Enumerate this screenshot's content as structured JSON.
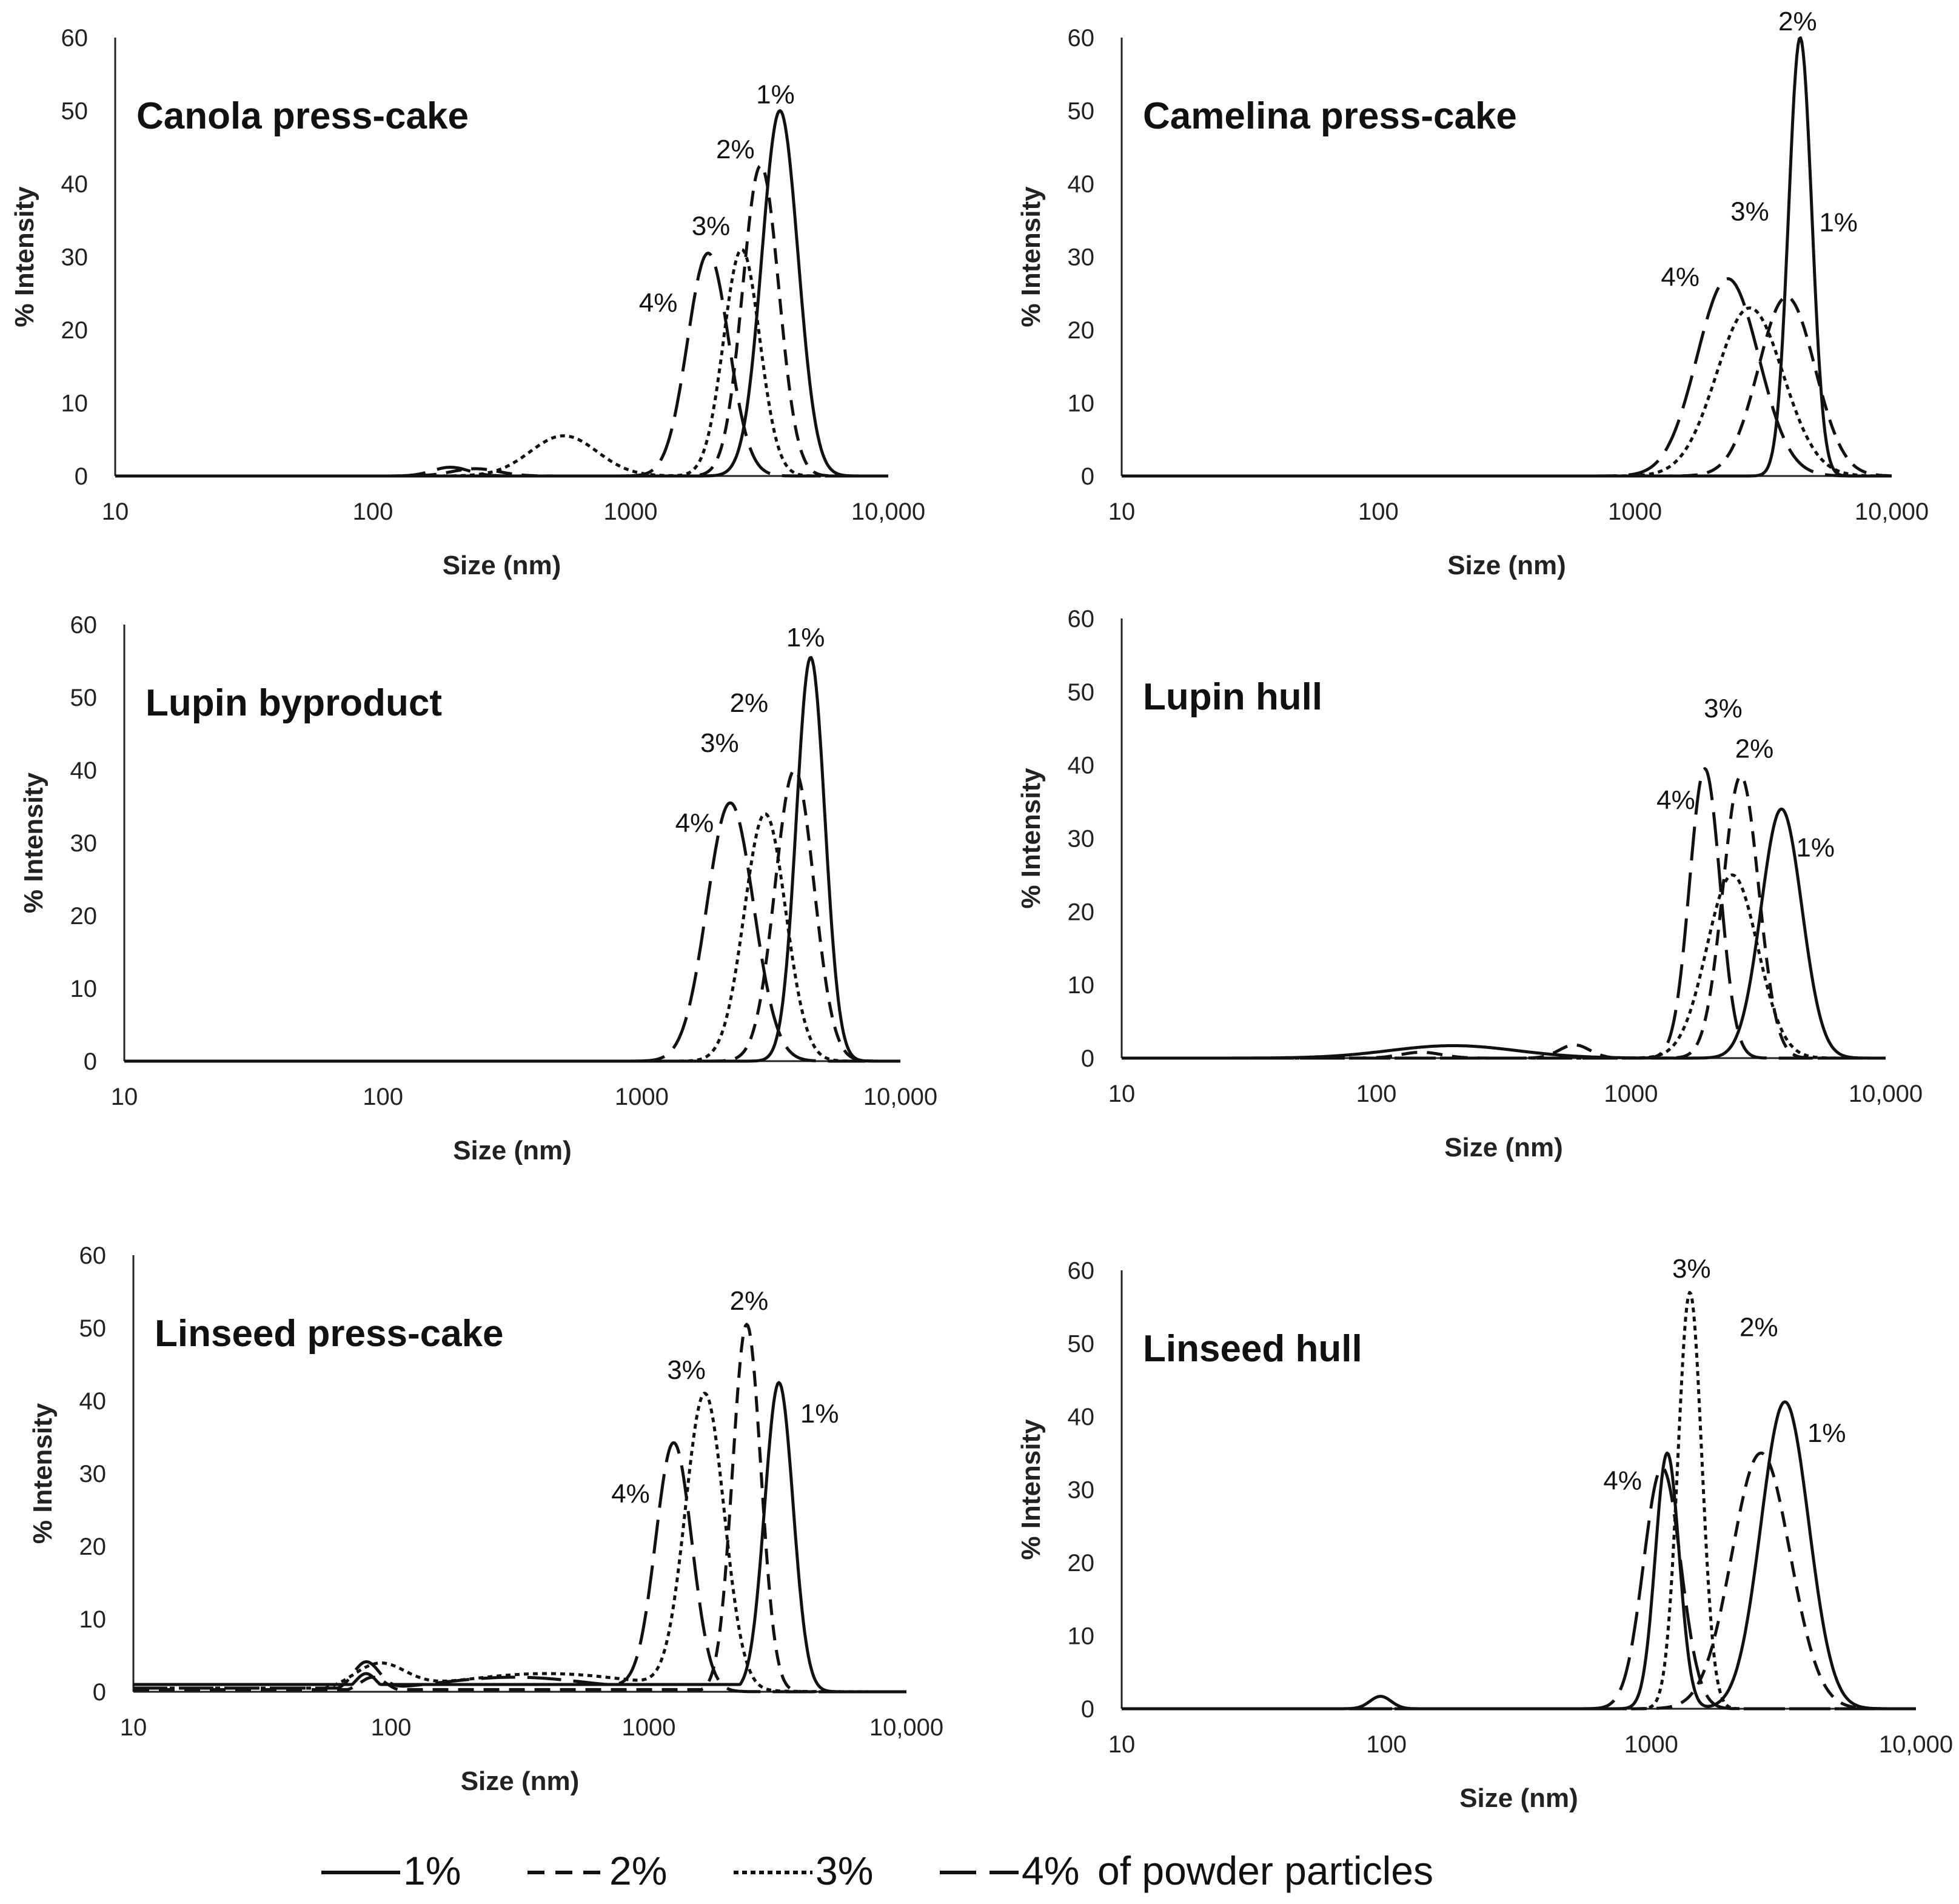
{
  "legend": {
    "items": [
      {
        "label": "1%",
        "dash": "none"
      },
      {
        "label": "2%",
        "dash": "28,18"
      },
      {
        "label": "3%",
        "dash": "8,6"
      },
      {
        "label": "4%",
        "dash": "60,22"
      }
    ],
    "suffix": "of powder particles"
  },
  "chart_data": [
    {
      "type": "line",
      "title": "Canola press-cake",
      "xlabel": "Size (nm)",
      "ylabel": "% Intensity",
      "xscale": "log",
      "xlim": [
        10,
        10000
      ],
      "ylim": [
        0,
        60
      ],
      "xticks": [
        "10",
        "100",
        "1000",
        "10,000"
      ],
      "yticks": [
        "0",
        "10",
        "20",
        "30",
        "40",
        "50",
        "60"
      ],
      "series": [
        {
          "name": "1%",
          "peaks": [
            {
              "c": 3800,
              "h": 50,
              "w": 0.07
            }
          ]
        },
        {
          "name": "2%",
          "peaks": [
            {
              "c": 3200,
              "h": 42.5,
              "w": 0.07
            },
            {
              "c": 250,
              "h": 1,
              "w": 0.09
            }
          ]
        },
        {
          "name": "3%",
          "peaks": [
            {
              "c": 2700,
              "h": 31,
              "w": 0.07
            },
            {
              "c": 550,
              "h": 5.5,
              "w": 0.13
            }
          ]
        },
        {
          "name": "4%",
          "peaks": [
            {
              "c": 2000,
              "h": 30.5,
              "w": 0.08
            },
            {
              "c": 200,
              "h": 1.2,
              "w": 0.07
            }
          ]
        }
      ],
      "annotations": [
        {
          "text": "1%",
          "x": 3650,
          "y": 51
        },
        {
          "text": "2%",
          "x": 2550,
          "y": 43.5
        },
        {
          "text": "3%",
          "x": 2050,
          "y": 33
        },
        {
          "text": "4%",
          "x": 1280,
          "y": 22.5
        }
      ]
    },
    {
      "type": "line",
      "title": "Camelina press-cake",
      "xlabel": "Size (nm)",
      "ylabel": "% Intensity",
      "xscale": "log",
      "xlim": [
        10,
        10000
      ],
      "ylim": [
        0,
        60
      ],
      "xticks": [
        "10",
        "100",
        "1000",
        "10,000"
      ],
      "yticks": [
        "0",
        "10",
        "20",
        "30",
        "40",
        "50",
        "60"
      ],
      "series": [
        {
          "name": "1%",
          "peaks": [
            {
              "c": 4400,
              "h": 60,
              "w": 0.045
            }
          ]
        },
        {
          "name": "2%",
          "peaks": [
            {
              "c": 3900,
              "h": 24.5,
              "w": 0.11
            }
          ]
        },
        {
          "name": "3%",
          "peaks": [
            {
              "c": 2800,
              "h": 23,
              "w": 0.13
            }
          ]
        },
        {
          "name": "4%",
          "peaks": [
            {
              "c": 2300,
              "h": 27,
              "w": 0.12
            }
          ]
        }
      ],
      "annotations": [
        {
          "text": "2%",
          "x": 4300,
          "y": 61
        },
        {
          "text": "3%",
          "x": 2800,
          "y": 35
        },
        {
          "text": "1%",
          "x": 6200,
          "y": 33.5
        },
        {
          "text": "4%",
          "x": 1500,
          "y": 26
        }
      ]
    },
    {
      "type": "line",
      "title": "Lupin byproduct",
      "xlabel": "Size (nm)",
      "ylabel": "% Intensity",
      "xscale": "log",
      "xlim": [
        10,
        10000
      ],
      "ylim": [
        0,
        60
      ],
      "xticks": [
        "10",
        "100",
        "1000",
        "10,000"
      ],
      "yticks": [
        "0",
        "10",
        "20",
        "30",
        "40",
        "50",
        "60"
      ],
      "series": [
        {
          "name": "1%",
          "peaks": [
            {
              "c": 4500,
              "h": 55.5,
              "w": 0.055
            }
          ]
        },
        {
          "name": "2%",
          "peaks": [
            {
              "c": 3900,
              "h": 40,
              "w": 0.075
            }
          ]
        },
        {
          "name": "3%",
          "peaks": [
            {
              "c": 3000,
              "h": 34,
              "w": 0.08
            }
          ]
        },
        {
          "name": "4%",
          "peaks": [
            {
              "c": 2200,
              "h": 35.5,
              "w": 0.09
            }
          ]
        }
      ],
      "annotations": [
        {
          "text": "1%",
          "x": 4300,
          "y": 57
        },
        {
          "text": "2%",
          "x": 2600,
          "y": 48
        },
        {
          "text": "3%",
          "x": 2000,
          "y": 42.5
        },
        {
          "text": "4%",
          "x": 1600,
          "y": 31.5
        }
      ]
    },
    {
      "type": "line",
      "title": "Lupin hull",
      "xlabel": "Size (nm)",
      "ylabel": "% Intensity",
      "xscale": "log",
      "xlim": [
        10,
        10000
      ],
      "ylim": [
        0,
        60
      ],
      "xticks": [
        "10",
        "100",
        "1000",
        "10,000"
      ],
      "yticks": [
        "0",
        "10",
        "20",
        "30",
        "40",
        "50",
        "60"
      ],
      "series": [
        {
          "name": "1%",
          "peaks": [
            {
              "c": 3900,
              "h": 34,
              "w": 0.08
            },
            {
              "c": 200,
              "h": 1.7,
              "w": 0.25
            }
          ]
        },
        {
          "name": "2%",
          "peaks": [
            {
              "c": 2700,
              "h": 38.5,
              "w": 0.07
            },
            {
              "c": 600,
              "h": 1.8,
              "w": 0.06
            },
            {
              "c": 150,
              "h": 0.8,
              "w": 0.08
            }
          ]
        },
        {
          "name": "3%",
          "peaks": [
            {
              "c": 2500,
              "h": 25,
              "w": 0.1
            }
          ]
        },
        {
          "name": "4%",
          "peaks": [
            {
              "c": 1950,
              "h": 39.5,
              "w": 0.06
            }
          ]
        }
      ],
      "annotations": [
        {
          "text": "3%",
          "x": 2300,
          "y": 46.5
        },
        {
          "text": "2%",
          "x": 3050,
          "y": 41
        },
        {
          "text": "4%",
          "x": 1500,
          "y": 34
        },
        {
          "text": "1%",
          "x": 5300,
          "y": 27.5
        }
      ]
    },
    {
      "type": "line",
      "title": "Linseed press-cake",
      "xlabel": "Size (nm)",
      "ylabel": "% Intensity",
      "xscale": "log",
      "xlim": [
        10,
        10000
      ],
      "ylim": [
        0,
        60
      ],
      "xticks": [
        "10",
        "100",
        "1000",
        "10,000"
      ],
      "yticks": [
        "0",
        "10",
        "20",
        "30",
        "40",
        "50",
        "60"
      ],
      "series": [
        {
          "name": "1%",
          "base": 1.0,
          "peaks": [
            {
              "c": 3200,
              "h": 42.5,
              "w": 0.055
            },
            {
              "c": 80,
              "h": 2.5,
              "w": 0.04
            },
            {
              "c": 750,
              "h": 1.0,
              "w": 0.05
            }
          ]
        },
        {
          "name": "2%",
          "base": 0.3,
          "peaks": [
            {
              "c": 2400,
              "h": 50.5,
              "w": 0.055
            },
            {
              "c": 85,
              "h": 2.0,
              "w": 0.05
            }
          ]
        },
        {
          "name": "3%",
          "base": 0.5,
          "peaks": [
            {
              "c": 1650,
              "h": 40.5,
              "w": 0.075
            },
            {
              "c": 90,
              "h": 3.5,
              "w": 0.1
            },
            {
              "c": 400,
              "h": 2.5,
              "w": 0.35
            }
          ]
        },
        {
          "name": "4%",
          "base": 0.5,
          "peaks": [
            {
              "c": 1250,
              "h": 34,
              "w": 0.07
            },
            {
              "c": 80,
              "h": 3.8,
              "w": 0.05
            },
            {
              "c": 300,
              "h": 2.0,
              "w": 0.3
            }
          ]
        }
      ],
      "annotations": [
        {
          "text": "2%",
          "x": 2450,
          "y": 52.5
        },
        {
          "text": "3%",
          "x": 1400,
          "y": 43
        },
        {
          "text": "1%",
          "x": 4600,
          "y": 37
        },
        {
          "text": "4%",
          "x": 850,
          "y": 26
        }
      ]
    },
    {
      "type": "line",
      "title": "Linseed hull",
      "xlabel": "Size (nm)",
      "ylabel": "% Intensity",
      "xscale": "log",
      "xlim": [
        10,
        10000
      ],
      "ylim": [
        0,
        60
      ],
      "xticks": [
        "10",
        "100",
        "1000",
        "10,000"
      ],
      "yticks": [
        "0",
        "10",
        "20",
        "30",
        "40",
        "50",
        "60"
      ],
      "series": [
        {
          "name": "1%",
          "peaks": [
            {
              "c": 3200,
              "h": 42,
              "w": 0.09
            },
            {
              "c": 1150,
              "h": 35,
              "w": 0.045
            },
            {
              "c": 95,
              "h": 1.7,
              "w": 0.04
            }
          ]
        },
        {
          "name": "2%",
          "peaks": [
            {
              "c": 2600,
              "h": 35,
              "w": 0.11
            }
          ]
        },
        {
          "name": "3%",
          "peaks": [
            {
              "c": 1400,
              "h": 57,
              "w": 0.045
            }
          ]
        },
        {
          "name": "4%",
          "peaks": [
            {
              "c": 1100,
              "h": 33,
              "w": 0.07
            }
          ]
        }
      ],
      "annotations": [
        {
          "text": "3%",
          "x": 1420,
          "y": 59
        },
        {
          "text": "2%",
          "x": 2550,
          "y": 51
        },
        {
          "text": "1%",
          "x": 4600,
          "y": 36.5
        },
        {
          "text": "4%",
          "x": 780,
          "y": 30
        }
      ]
    }
  ]
}
